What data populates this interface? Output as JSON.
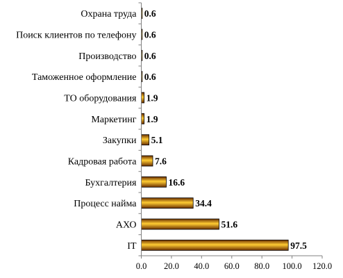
{
  "chart_data": {
    "type": "bar",
    "orientation": "horizontal",
    "categories": [
      "Охрана труда",
      "Поиск клиентов по телефону",
      "Производство",
      "Таможенное оформление",
      "ТО оборудования",
      "Маркетинг",
      "Закупки",
      "Кадровая работа",
      "Бухгалтерия",
      "Процесс найма",
      "АХО",
      "IT"
    ],
    "values": [
      0.6,
      0.6,
      0.6,
      0.6,
      1.9,
      1.9,
      5.1,
      7.6,
      16.6,
      34.4,
      51.6,
      97.5
    ],
    "value_labels": [
      "0.6",
      "0.6",
      "0.6",
      "0.6",
      "1.9",
      "1.9",
      "5.1",
      "7.6",
      "16.6",
      "34.4",
      "51.6",
      "97.5"
    ],
    "x_ticks": [
      "0.0",
      "20.0",
      "40.0",
      "60.0",
      "80.0",
      "100.0",
      "120.0"
    ],
    "xlim": [
      0,
      120
    ],
    "title": "",
    "xlabel": "",
    "ylabel": "",
    "grid": false,
    "legend": "none",
    "colors": {
      "bar_dark": "#6b2f00",
      "bar_light": "#ffcc33",
      "bar_outline": "#000000",
      "axis": "#808080"
    }
  }
}
